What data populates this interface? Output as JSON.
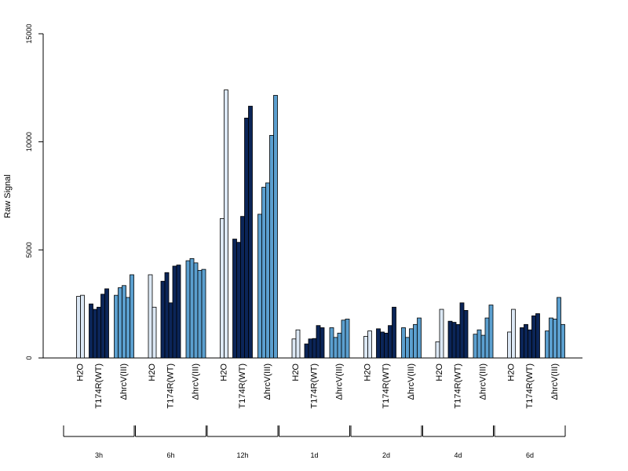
{
  "chart_data": {
    "type": "bar",
    "title": "",
    "xlabel": "",
    "ylabel": "Raw Signal",
    "ylim": [
      0,
      15000
    ],
    "yticks": [
      "0",
      "5000",
      "10000",
      "15000"
    ],
    "grid": false,
    "colors": {
      "H2O": "#dce8f5",
      "T174R(WT)": "#0b2558",
      "ΔhrcV(III)": "#5b9fcf"
    },
    "group_labels": [
      "H2O",
      "T174R(WT)",
      "ΔhrcV(III)"
    ],
    "timepoints": [
      {
        "label": "3h",
        "groups": [
          [
            2850,
            2900
          ],
          [
            2500,
            2250,
            2350,
            2950,
            3200
          ],
          [
            2900,
            3250,
            3350,
            2800,
            3850
          ]
        ]
      },
      {
        "label": "6h",
        "groups": [
          [
            3850,
            2350
          ],
          [
            3550,
            3950,
            2550,
            4250,
            4300
          ],
          [
            4500,
            4600,
            4400,
            4050,
            4100
          ]
        ]
      },
      {
        "label": "12h",
        "groups": [
          [
            6450,
            12400
          ],
          [
            5500,
            5350,
            6550,
            11100,
            11650
          ],
          [
            6650,
            7900,
            8100,
            10300,
            12150
          ]
        ]
      },
      {
        "label": "1d",
        "groups": [
          [
            880,
            1300
          ],
          [
            650,
            880,
            900,
            1500,
            1400
          ],
          [
            1400,
            950,
            1150,
            1750,
            1800
          ]
        ]
      },
      {
        "label": "2d",
        "groups": [
          [
            1000,
            1250
          ],
          [
            1350,
            1200,
            1150,
            1500,
            2350
          ],
          [
            1400,
            950,
            1350,
            1550,
            1850
          ]
        ]
      },
      {
        "label": "4d",
        "groups": [
          [
            750,
            2250
          ],
          [
            1700,
            1650,
            1550,
            2550,
            2200
          ],
          [
            1100,
            1300,
            1050,
            1850,
            2450
          ]
        ]
      },
      {
        "label": "6d",
        "groups": [
          [
            1200,
            2250
          ],
          [
            1400,
            1550,
            1300,
            1950,
            2050
          ],
          [
            1250,
            1850,
            1800,
            2800,
            1550
          ]
        ]
      }
    ]
  }
}
